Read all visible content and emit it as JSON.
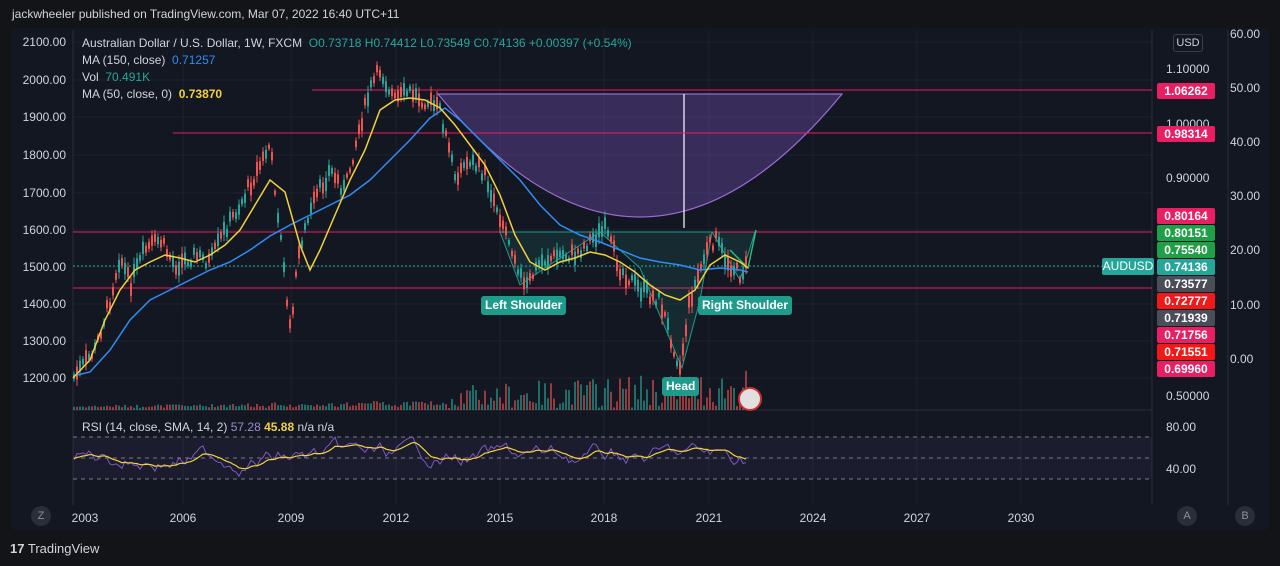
{
  "header": {
    "published": "jackwheeler published on TradingView.com, Mar 07, 2022 16:40 UTC+11"
  },
  "legend": {
    "symbol": "Australian Dollar / U.S. Dollar, 1W, FXCM",
    "ohlc": "O0.73718 H0.74412 L0.73549 C0.74136 +0.00397 (+0.54%)",
    "ma150_label": "MA (150, close)",
    "ma150_value": "0.71257",
    "vol_label": "Vol",
    "vol_value": "70.491K",
    "ma50_label": "MA (50, close, 0)",
    "ma50_value": "0.73870"
  },
  "rsi_legend": {
    "label": "RSI (14, close, SMA, 14, 2)",
    "v1": "57.28",
    "v2": "45.88",
    "v3": "n/a  n/a"
  },
  "left_axis": [
    "2100.00",
    "2000.00",
    "1900.00",
    "1800.00",
    "1700.00",
    "1600.00",
    "1500.00",
    "1400.00",
    "1300.00",
    "1200.00"
  ],
  "right_axis_price": [
    "1.10000",
    "1.00000",
    "0.90000",
    "0.50000"
  ],
  "right_axis_far": [
    "60.00",
    "50.00",
    "40.00",
    "30.00",
    "20.00",
    "10.00",
    "0.00"
  ],
  "rsi_axis": [
    "80.00",
    "40.00"
  ],
  "x_axis": [
    "2003",
    "2006",
    "2009",
    "2012",
    "2015",
    "2018",
    "2021",
    "2024",
    "2027",
    "2030"
  ],
  "currency": "USD",
  "symbol_tag": "AUDUSD",
  "price_badges": [
    {
      "value": "1.06262",
      "color": "#e91e63"
    },
    {
      "value": "0.98314",
      "color": "#e91e63"
    },
    {
      "value": "0.80164",
      "color": "#e91e63"
    },
    {
      "value": "0.80151",
      "color": "#1fa046"
    },
    {
      "value": "0.75540",
      "color": "#1fa046"
    },
    {
      "value": "0.74136",
      "color": "#26a69a"
    },
    {
      "value": "0.73577",
      "color": "#4a4e58"
    },
    {
      "value": "0.72777",
      "color": "#f01818"
    },
    {
      "value": "0.71939",
      "color": "#4a4e58"
    },
    {
      "value": "0.71756",
      "color": "#e91e63"
    },
    {
      "value": "0.71551",
      "color": "#f01818"
    },
    {
      "value": "0.69960",
      "color": "#e91e63"
    }
  ],
  "pattern_labels": {
    "left": "Left Shoulder",
    "head": "Head",
    "right": "Right Shoulder"
  },
  "corners": {
    "z": "Z",
    "a": "A",
    "b": "B"
  },
  "brand": "TradingView",
  "colors": {
    "up": "#26a69a",
    "down": "#ef5350",
    "ma50": "#f2d13a",
    "ma150": "#2f8cf5",
    "level": "#e91e63",
    "rsi": "#7e57c2"
  }
}
